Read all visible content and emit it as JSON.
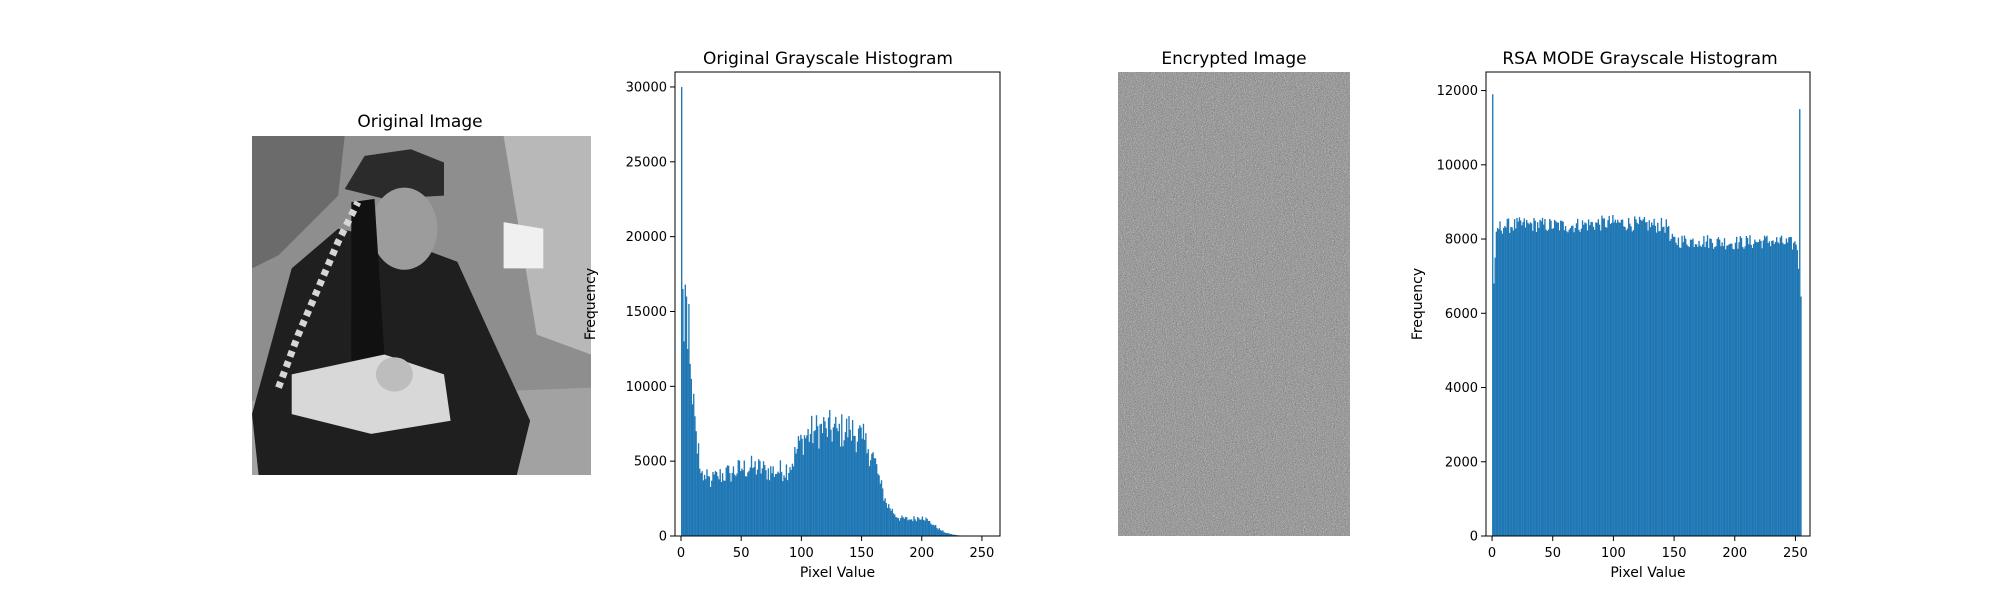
{
  "figure": {
    "panels": [
      {
        "title": "Original Image"
      },
      {
        "title": "Encrypted Image"
      }
    ]
  },
  "colors": {
    "bar": "#1f77b4",
    "axis": "#000000",
    "background": "#ffffff"
  },
  "chart_data": [
    {
      "type": "bar",
      "title": "Original Grayscale Histogram",
      "xlabel": "Pixel Value",
      "ylabel": "Frequency",
      "xlim": [
        -5,
        265
      ],
      "ylim": [
        0,
        31000
      ],
      "xticks": [
        0,
        50,
        100,
        150,
        200,
        250
      ],
      "yticks": [
        0,
        5000,
        10000,
        15000,
        20000,
        25000,
        30000
      ],
      "xtick_labels": [
        "0",
        "50",
        "100",
        "150",
        "200",
        "250"
      ],
      "ytick_labels": [
        "0",
        "5000",
        "10000",
        "15000",
        "20000",
        "25000",
        "30000"
      ],
      "bin_width": 1,
      "anchors": [
        [
          0,
          30000
        ],
        [
          1,
          16500
        ],
        [
          2,
          13000
        ],
        [
          3,
          16800
        ],
        [
          4,
          16000
        ],
        [
          5,
          12500
        ],
        [
          6,
          15500
        ],
        [
          7,
          11500
        ],
        [
          8,
          10500
        ],
        [
          9,
          8800
        ],
        [
          10,
          9500
        ],
        [
          11,
          8000
        ],
        [
          12,
          7000
        ],
        [
          13,
          5500
        ],
        [
          14,
          6200
        ],
        [
          15,
          4500
        ],
        [
          16,
          4200
        ],
        [
          20,
          3800
        ],
        [
          25,
          3700
        ],
        [
          30,
          4000
        ],
        [
          40,
          4200
        ],
        [
          50,
          4500
        ],
        [
          60,
          4600
        ],
        [
          70,
          4400
        ],
        [
          80,
          4300
        ],
        [
          90,
          4600
        ],
        [
          100,
          6500
        ],
        [
          110,
          7000
        ],
        [
          120,
          7200
        ],
        [
          130,
          7000
        ],
        [
          140,
          7100
        ],
        [
          150,
          6500
        ],
        [
          155,
          5800
        ],
        [
          160,
          5200
        ],
        [
          165,
          3500
        ],
        [
          170,
          2200
        ],
        [
          180,
          1200
        ],
        [
          190,
          1100
        ],
        [
          200,
          1300
        ],
        [
          205,
          1000
        ],
        [
          210,
          700
        ],
        [
          215,
          400
        ],
        [
          220,
          200
        ],
        [
          225,
          100
        ],
        [
          230,
          40
        ],
        [
          240,
          10
        ],
        [
          255,
          0
        ]
      ]
    },
    {
      "type": "bar",
      "title": "RSA MODE Grayscale Histogram",
      "xlabel": "Pixel Value",
      "ylabel": "Frequency",
      "xlim": [
        -5,
        262
      ],
      "ylim": [
        0,
        12500
      ],
      "xticks": [
        0,
        50,
        100,
        150,
        200,
        250
      ],
      "yticks": [
        0,
        2000,
        4000,
        6000,
        8000,
        10000,
        12000
      ],
      "xtick_labels": [
        "0",
        "50",
        "100",
        "150",
        "200",
        "250"
      ],
      "ytick_labels": [
        "0",
        "2000",
        "4000",
        "6000",
        "8000",
        "10000",
        "12000"
      ],
      "bin_width": 1,
      "anchors": [
        [
          0,
          11900
        ],
        [
          1,
          6800
        ],
        [
          2,
          7500
        ],
        [
          3,
          8200
        ],
        [
          4,
          8300
        ],
        [
          10,
          8350
        ],
        [
          30,
          8400
        ],
        [
          60,
          8350
        ],
        [
          100,
          8450
        ],
        [
          120,
          8400
        ],
        [
          145,
          8350
        ],
        [
          146,
          7950
        ],
        [
          170,
          7950
        ],
        [
          200,
          7900
        ],
        [
          230,
          7950
        ],
        [
          250,
          7850
        ],
        [
          251,
          7700
        ],
        [
          252,
          7200
        ],
        [
          253,
          11500
        ],
        [
          254,
          6450
        ],
        [
          255,
          0
        ]
      ]
    }
  ]
}
